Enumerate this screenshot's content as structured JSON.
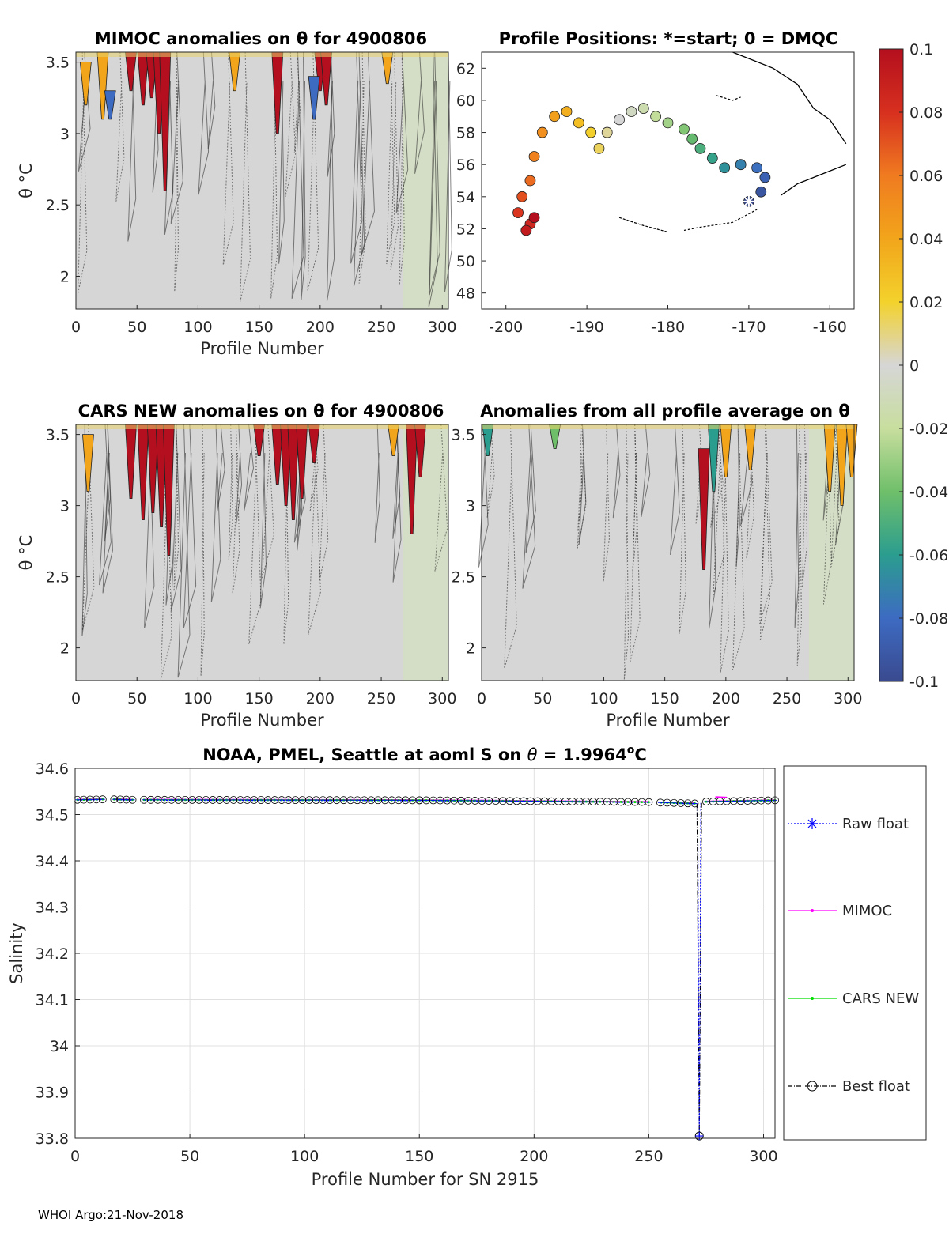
{
  "footer": "WHOI Argo:21-Nov-2018",
  "colors": {
    "raw_float": "#0000ff",
    "mimoc": "#ff00ff",
    "cars_new": "#00dd00",
    "best_float": "#000000",
    "anomaly_background": "#d6d6d6",
    "anomaly_high": "#b40f1e",
    "anomaly_mid_high": "#f2c500",
    "anomaly_low": "#3d6bc2",
    "grid": "#e0e0e0"
  },
  "chart_data": [
    {
      "id": "mimoc",
      "type": "heatmap",
      "title": "MIMOC anomalies on θ  for 4900806",
      "xlabel": "Profile Number",
      "ylabel": "θ °C",
      "xlim": [
        0,
        305
      ],
      "ylim": [
        1.77,
        3.57
      ],
      "xticks": [
        0,
        50,
        100,
        150,
        200,
        250,
        300
      ],
      "yticks": [
        2,
        2.5,
        3,
        3.5
      ],
      "anomaly_streaks": [
        {
          "profile": 45,
          "top": 3.57,
          "bottom": 3.3,
          "anomaly": 0.1
        },
        {
          "profile": 55,
          "top": 3.57,
          "bottom": 3.2,
          "anomaly": 0.1
        },
        {
          "profile": 62,
          "top": 3.57,
          "bottom": 3.25,
          "anomaly": 0.1
        },
        {
          "profile": 68,
          "top": 3.57,
          "bottom": 3.0,
          "anomaly": 0.1
        },
        {
          "profile": 73,
          "top": 3.57,
          "bottom": 2.6,
          "anomaly": 0.1
        },
        {
          "profile": 165,
          "top": 3.57,
          "bottom": 3.0,
          "anomaly": 0.1
        },
        {
          "profile": 200,
          "top": 3.57,
          "bottom": 3.3,
          "anomaly": 0.1
        },
        {
          "profile": 205,
          "top": 3.57,
          "bottom": 3.2,
          "anomaly": 0.1
        },
        {
          "profile": 8,
          "top": 3.5,
          "bottom": 3.2,
          "anomaly": 0.04
        },
        {
          "profile": 22,
          "top": 3.57,
          "bottom": 3.1,
          "anomaly": 0.04
        },
        {
          "profile": 130,
          "top": 3.57,
          "bottom": 3.3,
          "anomaly": 0.04
        },
        {
          "profile": 255,
          "top": 3.57,
          "bottom": 3.35,
          "anomaly": 0.04
        },
        {
          "profile": 28,
          "top": 3.3,
          "bottom": 3.1,
          "anomaly": -0.08
        },
        {
          "profile": 195,
          "top": 3.4,
          "bottom": 3.1,
          "anomaly": -0.08
        }
      ]
    },
    {
      "id": "positions",
      "type": "scatter",
      "title": "Profile Positions: *=start; 0 = DMQC",
      "xlabel": "",
      "ylabel": "",
      "xlim": [
        -203,
        -157
      ],
      "ylim": [
        47,
        63
      ],
      "xticks": [
        -200,
        -190,
        -180,
        -170,
        -160
      ],
      "yticks": [
        48,
        50,
        52,
        54,
        56,
        58,
        60,
        62
      ],
      "start": {
        "lon": -170.0,
        "lat": 53.7
      },
      "track": [
        [
          -170.0,
          53.7
        ],
        [
          -168.5,
          54.3
        ],
        [
          -168.0,
          55.2
        ],
        [
          -169.0,
          55.8
        ],
        [
          -171.0,
          56.0
        ],
        [
          -173.0,
          55.8
        ],
        [
          -174.5,
          56.4
        ],
        [
          -176.0,
          57.0
        ],
        [
          -177.0,
          57.6
        ],
        [
          -178.0,
          58.2
        ],
        [
          -180.0,
          58.6
        ],
        [
          -181.5,
          59.0
        ],
        [
          -183.0,
          59.5
        ],
        [
          -184.5,
          59.3
        ],
        [
          -186.0,
          58.8
        ],
        [
          -187.5,
          58.0
        ],
        [
          -188.5,
          57.0
        ],
        [
          -189.5,
          58.0
        ],
        [
          -191.0,
          58.6
        ],
        [
          -192.5,
          59.3
        ],
        [
          -194.0,
          59.0
        ],
        [
          -195.5,
          58.0
        ],
        [
          -196.5,
          56.5
        ],
        [
          -197.0,
          55.0
        ],
        [
          -198.0,
          54.0
        ],
        [
          -198.5,
          53.0
        ],
        [
          -197.0,
          52.3
        ],
        [
          -197.5,
          51.9
        ],
        [
          -196.5,
          52.7
        ]
      ],
      "colorbar": {
        "min": -0.1,
        "max": 0.1,
        "ticks": [
          "0.1",
          "0.08",
          "0.06",
          "0.04",
          "0.02",
          "0",
          "-0.02",
          "-0.04",
          "-0.06",
          "-0.08",
          "-0.1"
        ]
      }
    },
    {
      "id": "cars",
      "type": "heatmap",
      "title": "CARS NEW anomalies on θ for 4900806",
      "xlabel": "Profile Number",
      "ylabel": "θ °C",
      "xlim": [
        0,
        305
      ],
      "ylim": [
        1.77,
        3.57
      ],
      "xticks": [
        0,
        50,
        100,
        150,
        200,
        250,
        300
      ],
      "yticks": [
        2,
        2.5,
        3,
        3.5
      ],
      "anomaly_streaks": [
        {
          "profile": 45,
          "top": 3.57,
          "bottom": 3.05,
          "anomaly": 0.1
        },
        {
          "profile": 55,
          "top": 3.57,
          "bottom": 2.9,
          "anomaly": 0.1
        },
        {
          "profile": 63,
          "top": 3.57,
          "bottom": 2.95,
          "anomaly": 0.1
        },
        {
          "profile": 70,
          "top": 3.57,
          "bottom": 2.85,
          "anomaly": 0.1
        },
        {
          "profile": 76,
          "top": 3.57,
          "bottom": 2.65,
          "anomaly": 0.1
        },
        {
          "profile": 150,
          "top": 3.57,
          "bottom": 3.35,
          "anomaly": 0.1
        },
        {
          "profile": 165,
          "top": 3.57,
          "bottom": 3.15,
          "anomaly": 0.1
        },
        {
          "profile": 172,
          "top": 3.57,
          "bottom": 3.0,
          "anomaly": 0.1
        },
        {
          "profile": 178,
          "top": 3.57,
          "bottom": 2.9,
          "anomaly": 0.1
        },
        {
          "profile": 185,
          "top": 3.57,
          "bottom": 3.05,
          "anomaly": 0.1
        },
        {
          "profile": 195,
          "top": 3.57,
          "bottom": 3.3,
          "anomaly": 0.1
        },
        {
          "profile": 275,
          "top": 3.57,
          "bottom": 2.8,
          "anomaly": 0.1
        },
        {
          "profile": 282,
          "top": 3.57,
          "bottom": 3.2,
          "anomaly": 0.1
        },
        {
          "profile": 10,
          "top": 3.5,
          "bottom": 3.1,
          "anomaly": 0.04
        },
        {
          "profile": 260,
          "top": 3.57,
          "bottom": 3.35,
          "anomaly": 0.04
        }
      ]
    },
    {
      "id": "allavg",
      "type": "heatmap",
      "title": "Anomalies from all profile average on θ",
      "xlabel": "Profile Number",
      "ylabel": "θ °C",
      "xlim": [
        0,
        305
      ],
      "ylim": [
        1.77,
        3.57
      ],
      "xticks": [
        0,
        50,
        100,
        150,
        200,
        250,
        300
      ],
      "yticks": [
        2,
        2.5,
        3,
        3.5
      ],
      "anomaly_streaks": [
        {
          "profile": 5,
          "top": 3.57,
          "bottom": 3.35,
          "anomaly": -0.06
        },
        {
          "profile": 60,
          "top": 3.57,
          "bottom": 3.4,
          "anomaly": -0.04
        },
        {
          "profile": 182,
          "top": 3.4,
          "bottom": 2.55,
          "anomaly": 0.1
        },
        {
          "profile": 190,
          "top": 3.57,
          "bottom": 3.1,
          "anomaly": -0.06
        },
        {
          "profile": 200,
          "top": 3.57,
          "bottom": 3.2,
          "anomaly": 0.04
        },
        {
          "profile": 220,
          "top": 3.57,
          "bottom": 3.25,
          "anomaly": 0.04
        },
        {
          "profile": 285,
          "top": 3.57,
          "bottom": 3.1,
          "anomaly": 0.04
        },
        {
          "profile": 295,
          "top": 3.57,
          "bottom": 3.0,
          "anomaly": 0.04
        },
        {
          "profile": 303,
          "top": 3.57,
          "bottom": 3.2,
          "anomaly": 0.04
        }
      ]
    },
    {
      "id": "salinity",
      "type": "line",
      "title": "NOAA, PMEL, Seattle at aoml S on θ = 1.9964°C",
      "title_parts": {
        "prefix": "NOAA, PMEL, Seattle at aoml S on ",
        "symbol": "θ",
        "mid": " = 1.9964",
        "sup": "o",
        "suffix": "C"
      },
      "xlabel": "Profile Number for SN 2915",
      "ylabel": "Salinity",
      "xlim": [
        0,
        305
      ],
      "ylim": [
        33.8,
        34.6
      ],
      "xticks": [
        0,
        50,
        100,
        150,
        200,
        250,
        300
      ],
      "yticks": [
        33.8,
        33.9,
        34,
        34.1,
        34.2,
        34.3,
        34.4,
        34.5,
        34.6
      ],
      "ytick_labels": [
        "33.8",
        "33.9",
        "34",
        "34.1",
        "34.2",
        "34.3",
        "34.4",
        "34.5",
        "34.6"
      ],
      "grid": true,
      "legend_position": "right-outside",
      "series": [
        {
          "name": "Raw float",
          "style": "dotted",
          "marker": "*"
        },
        {
          "name": "MIMOC",
          "style": "solid",
          "marker": "."
        },
        {
          "name": "CARS NEW",
          "style": "solid",
          "marker": "."
        },
        {
          "name": "Best float",
          "style": "dashdot",
          "marker": "o"
        }
      ],
      "float_segments": [
        {
          "x": [
            1,
            12
          ],
          "y": [
            34.532,
            34.533
          ]
        },
        {
          "x": [
            17,
            25
          ],
          "y": [
            34.533,
            34.532
          ]
        },
        {
          "x": [
            30,
            150
          ],
          "y": [
            34.532,
            34.531
          ]
        },
        {
          "x": [
            150,
            250
          ],
          "y": [
            34.531,
            34.527
          ]
        },
        {
          "x": [
            255,
            270
          ],
          "y": [
            34.526,
            34.524
          ]
        },
        {
          "x": [
            275,
            305
          ],
          "y": [
            34.528,
            34.531
          ]
        }
      ],
      "outlier": {
        "x": 272,
        "y": 33.805
      },
      "mimoc_bump": {
        "x": [
          279,
          284
        ],
        "y": [
          34.538,
          34.537
        ]
      }
    }
  ]
}
